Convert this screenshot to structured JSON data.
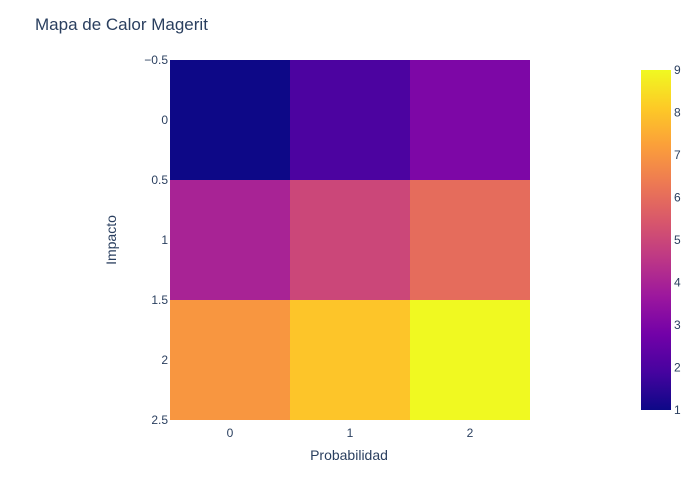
{
  "chart_data": {
    "type": "heatmap",
    "title": "Mapa de Calor Magerit",
    "xlabel": "Probabilidad",
    "ylabel": "Impacto",
    "x": [
      0,
      1,
      2
    ],
    "y": [
      0,
      1,
      2
    ],
    "z": [
      [
        1,
        2,
        3
      ],
      [
        4,
        5,
        6
      ],
      [
        7,
        8,
        9
      ]
    ],
    "xlim": [
      -0.5,
      2.5
    ],
    "ylim": [
      -0.5,
      2.5
    ],
    "y_reversed": true,
    "x_ticks": [
      "0",
      "1",
      "2"
    ],
    "y_ticks": [
      "−0.5",
      "0",
      "0.5",
      "1",
      "1.5",
      "2",
      "2.5"
    ],
    "y_tick_values": [
      -0.5,
      0,
      0.5,
      1,
      1.5,
      2,
      2.5
    ],
    "colorbar": {
      "min": 1,
      "max": 9,
      "ticks": [
        "1",
        "2",
        "3",
        "4",
        "5",
        "6",
        "7",
        "8",
        "9"
      ],
      "tick_values": [
        1,
        2,
        3,
        4,
        5,
        6,
        7,
        8,
        9
      ]
    },
    "colorscale": [
      "#0d0887",
      "#46039f",
      "#7201a8",
      "#9c179e",
      "#bd3786",
      "#d8576b",
      "#ed7953",
      "#fb9f3a",
      "#fdca26",
      "#f0f921"
    ],
    "grid": false
  }
}
